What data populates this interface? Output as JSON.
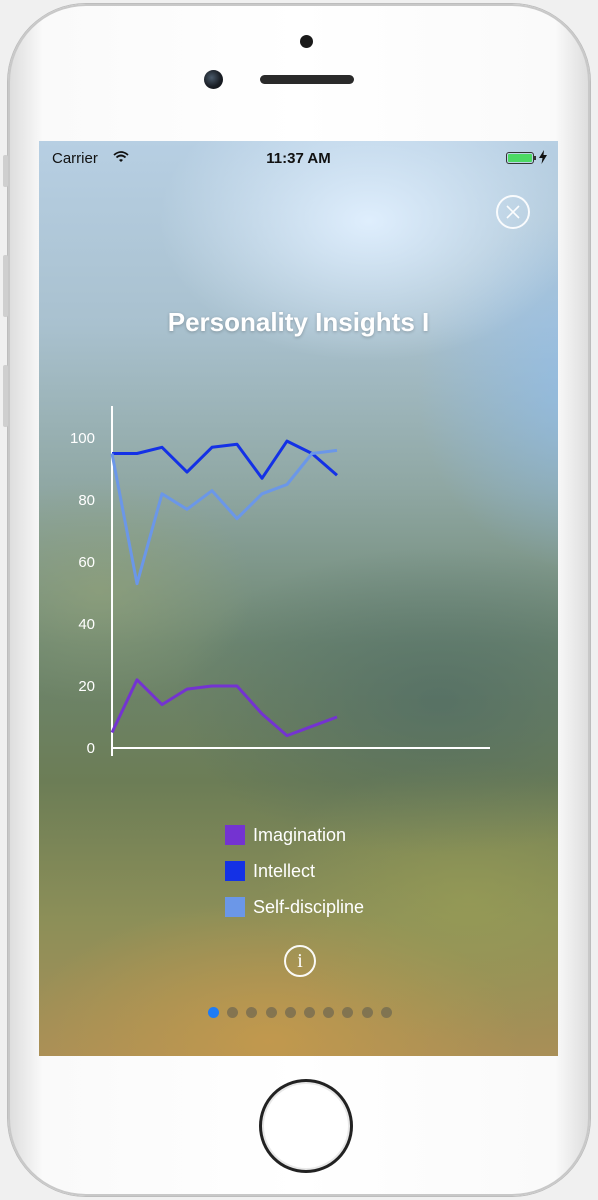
{
  "status_bar": {
    "carrier": "Carrier",
    "time": "11:37 AM",
    "battery_level": 1.0
  },
  "screen": {
    "title": "Personality Insights I",
    "close_icon": "close-circle-icon",
    "info_icon": "info-icon",
    "info_label": "i"
  },
  "chart_data": {
    "type": "line",
    "title": "",
    "xlabel": "",
    "ylabel": "",
    "ylim": [
      0,
      110
    ],
    "y_ticks": [
      "0",
      "20",
      "40",
      "60",
      "80",
      "100"
    ],
    "x": [
      0,
      1,
      2,
      3,
      4,
      5,
      6,
      7,
      8,
      9
    ],
    "series": [
      {
        "name": "Imagination",
        "color": "#7433d1",
        "values": [
          5,
          22,
          14,
          19,
          20,
          20,
          11,
          4,
          7,
          10
        ]
      },
      {
        "name": "Intellect",
        "color": "#1431e6",
        "values": [
          95,
          95,
          97,
          89,
          97,
          98,
          87,
          99,
          95,
          88
        ]
      },
      {
        "name": "Self-discipline",
        "color": "#6b97e8",
        "values": [
          95,
          53,
          82,
          77,
          83,
          74,
          82,
          85,
          95,
          96
        ]
      }
    ]
  },
  "pager": {
    "count": 10,
    "active_index": 0
  }
}
